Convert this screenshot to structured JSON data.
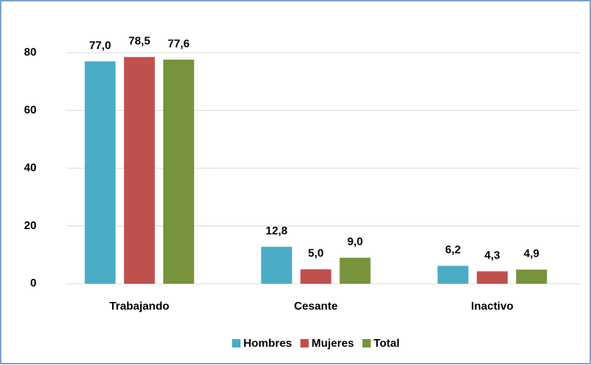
{
  "chart_data": {
    "type": "bar",
    "categories": [
      "Trabajando",
      "Cesante",
      "Inactivo"
    ],
    "series": [
      {
        "name": "Hombres",
        "color": "#4bacc6",
        "values": [
          77.0,
          12.8,
          6.2
        ],
        "value_labels": [
          "77,0",
          "12,8",
          "6,2"
        ]
      },
      {
        "name": "Mujeres",
        "color": "#c0504d",
        "values": [
          78.5,
          5.0,
          4.3
        ],
        "value_labels": [
          "78,5",
          "5,0",
          "4,3"
        ]
      },
      {
        "name": "Total",
        "color": "#77933c",
        "values": [
          77.6,
          9.0,
          4.9
        ],
        "value_labels": [
          "77,6",
          "9,0",
          "4,9"
        ]
      }
    ],
    "ylim": [
      0,
      90
    ],
    "yticks": [
      0,
      20,
      40,
      60,
      80
    ],
    "grid": true,
    "legend": "bottom"
  }
}
